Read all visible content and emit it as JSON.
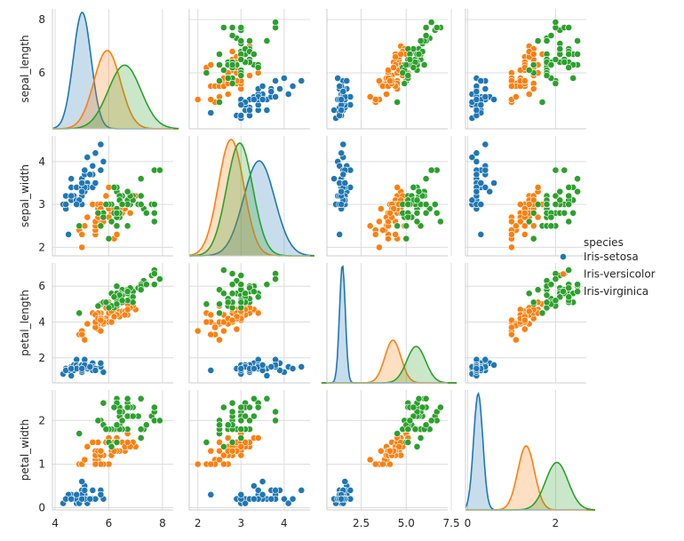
{
  "chart_data": {
    "type": "scatter",
    "title": "",
    "variables": [
      "sepal_length",
      "sepal_width",
      "petal_length",
      "petal_width"
    ],
    "ranges": {
      "sepal_length": [
        3.9,
        8.4
      ],
      "sepal_width": [
        1.8,
        4.6
      ],
      "petal_length": [
        0.6,
        7.3
      ],
      "petal_width": [
        -0.05,
        2.7
      ]
    },
    "ticks": {
      "sepal_length": [
        4,
        6,
        8
      ],
      "sepal_width": [
        2,
        3,
        4
      ],
      "petal_length": [
        2.5,
        5.0,
        7.5
      ],
      "petal_width": [
        0,
        2
      ]
    },
    "row_ticks": {
      "sepal_length": [
        6,
        8
      ],
      "sepal_width": [
        2,
        3,
        4
      ],
      "petal_length": [
        2,
        4,
        6
      ],
      "petal_width": [
        0,
        1,
        2
      ]
    },
    "diag_kde_limits": {
      "sepal_length": [
        3.9,
        8.6
      ],
      "sepal_width": [
        1.8,
        4.7
      ],
      "petal_length": [
        0.3,
        7.8
      ],
      "petal_width": [
        -0.05,
        2.9
      ]
    },
    "grid": true,
    "legend": {
      "title": "species",
      "position": "right",
      "entries": [
        "Iris-setosa",
        "Iris-versicolor",
        "Iris-virginica"
      ]
    },
    "colors": {
      "Iris-setosa": "#1f77b4",
      "Iris-versicolor": "#ff7f0e",
      "Iris-virginica": "#2ca02c"
    },
    "species_stats": {
      "Iris-setosa": {
        "mean": [
          5.01,
          3.42,
          1.46,
          0.24
        ],
        "std": [
          0.35,
          0.38,
          0.17,
          0.11
        ]
      },
      "Iris-versicolor": {
        "mean": [
          5.94,
          2.77,
          4.26,
          1.33
        ],
        "std": [
          0.52,
          0.31,
          0.47,
          0.2
        ]
      },
      "Iris-virginica": {
        "mean": [
          6.59,
          2.97,
          5.55,
          2.03
        ],
        "std": [
          0.64,
          0.32,
          0.55,
          0.27
        ]
      }
    },
    "points": {
      "Iris-setosa": [
        [
          5.1,
          3.5,
          1.4,
          0.2
        ],
        [
          4.9,
          3.0,
          1.4,
          0.2
        ],
        [
          4.7,
          3.2,
          1.3,
          0.2
        ],
        [
          4.6,
          3.1,
          1.5,
          0.2
        ],
        [
          5.0,
          3.6,
          1.4,
          0.2
        ],
        [
          5.4,
          3.9,
          1.7,
          0.4
        ],
        [
          4.6,
          3.4,
          1.4,
          0.3
        ],
        [
          5.0,
          3.4,
          1.5,
          0.2
        ],
        [
          4.4,
          2.9,
          1.4,
          0.2
        ],
        [
          4.9,
          3.1,
          1.5,
          0.1
        ],
        [
          5.4,
          3.7,
          1.5,
          0.2
        ],
        [
          4.8,
          3.4,
          1.6,
          0.2
        ],
        [
          4.8,
          3.0,
          1.4,
          0.1
        ],
        [
          4.3,
          3.0,
          1.1,
          0.1
        ],
        [
          5.8,
          4.0,
          1.2,
          0.2
        ],
        [
          5.7,
          4.4,
          1.5,
          0.4
        ],
        [
          5.4,
          3.9,
          1.3,
          0.4
        ],
        [
          5.1,
          3.5,
          1.4,
          0.3
        ],
        [
          5.7,
          3.8,
          1.7,
          0.3
        ],
        [
          5.1,
          3.8,
          1.5,
          0.3
        ],
        [
          5.4,
          3.4,
          1.7,
          0.2
        ],
        [
          5.1,
          3.7,
          1.5,
          0.4
        ],
        [
          4.6,
          3.6,
          1.0,
          0.2
        ],
        [
          5.1,
          3.3,
          1.7,
          0.5
        ],
        [
          4.8,
          3.4,
          1.9,
          0.2
        ],
        [
          5.0,
          3.0,
          1.6,
          0.2
        ],
        [
          5.0,
          3.4,
          1.6,
          0.4
        ],
        [
          5.2,
          3.5,
          1.5,
          0.2
        ],
        [
          5.2,
          3.4,
          1.4,
          0.2
        ],
        [
          4.7,
          3.2,
          1.6,
          0.2
        ],
        [
          4.8,
          3.1,
          1.6,
          0.2
        ],
        [
          5.4,
          3.4,
          1.5,
          0.4
        ],
        [
          5.2,
          4.1,
          1.5,
          0.1
        ],
        [
          5.5,
          4.2,
          1.4,
          0.2
        ],
        [
          4.9,
          3.1,
          1.5,
          0.1
        ],
        [
          5.0,
          3.2,
          1.2,
          0.2
        ],
        [
          5.5,
          3.5,
          1.3,
          0.2
        ],
        [
          4.9,
          3.1,
          1.5,
          0.1
        ],
        [
          4.4,
          3.0,
          1.3,
          0.2
        ],
        [
          5.1,
          3.4,
          1.5,
          0.2
        ],
        [
          5.0,
          3.5,
          1.3,
          0.3
        ],
        [
          4.5,
          2.3,
          1.3,
          0.3
        ],
        [
          4.4,
          3.2,
          1.3,
          0.2
        ],
        [
          5.0,
          3.5,
          1.6,
          0.6
        ],
        [
          5.1,
          3.8,
          1.9,
          0.4
        ],
        [
          4.8,
          3.0,
          1.4,
          0.3
        ],
        [
          5.1,
          3.8,
          1.6,
          0.2
        ],
        [
          4.6,
          3.2,
          1.4,
          0.2
        ],
        [
          5.3,
          3.7,
          1.5,
          0.2
        ],
        [
          5.0,
          3.3,
          1.4,
          0.2
        ]
      ],
      "Iris-versicolor": [
        [
          7.0,
          3.2,
          4.7,
          1.4
        ],
        [
          6.4,
          3.2,
          4.5,
          1.5
        ],
        [
          6.9,
          3.1,
          4.9,
          1.5
        ],
        [
          5.5,
          2.3,
          4.0,
          1.3
        ],
        [
          6.5,
          2.8,
          4.6,
          1.5
        ],
        [
          5.7,
          2.8,
          4.5,
          1.3
        ],
        [
          6.3,
          3.3,
          4.7,
          1.6
        ],
        [
          4.9,
          2.4,
          3.3,
          1.0
        ],
        [
          6.6,
          2.9,
          4.6,
          1.3
        ],
        [
          5.2,
          2.7,
          3.9,
          1.4
        ],
        [
          5.0,
          2.0,
          3.5,
          1.0
        ],
        [
          5.9,
          3.0,
          4.2,
          1.5
        ],
        [
          6.0,
          2.2,
          4.0,
          1.0
        ],
        [
          6.1,
          2.9,
          4.7,
          1.4
        ],
        [
          5.6,
          2.9,
          3.6,
          1.3
        ],
        [
          6.7,
          3.1,
          4.4,
          1.4
        ],
        [
          5.6,
          3.0,
          4.5,
          1.5
        ],
        [
          5.8,
          2.7,
          4.1,
          1.0
        ],
        [
          6.2,
          2.2,
          4.5,
          1.5
        ],
        [
          5.6,
          2.5,
          3.9,
          1.1
        ],
        [
          5.9,
          3.2,
          4.8,
          1.8
        ],
        [
          6.1,
          2.8,
          4.0,
          1.3
        ],
        [
          6.3,
          2.5,
          4.9,
          1.5
        ],
        [
          6.1,
          2.8,
          4.7,
          1.2
        ],
        [
          6.4,
          2.9,
          4.3,
          1.3
        ],
        [
          6.6,
          3.0,
          4.4,
          1.4
        ],
        [
          6.8,
          2.8,
          4.8,
          1.4
        ],
        [
          6.7,
          3.0,
          5.0,
          1.7
        ],
        [
          6.0,
          2.9,
          4.5,
          1.5
        ],
        [
          5.7,
          2.6,
          3.5,
          1.0
        ],
        [
          5.5,
          2.4,
          3.8,
          1.1
        ],
        [
          5.5,
          2.4,
          3.7,
          1.0
        ],
        [
          5.8,
          2.7,
          3.9,
          1.2
        ],
        [
          6.0,
          2.7,
          5.1,
          1.6
        ],
        [
          5.4,
          3.0,
          4.5,
          1.5
        ],
        [
          6.0,
          3.4,
          4.5,
          1.6
        ],
        [
          6.7,
          3.1,
          4.7,
          1.5
        ],
        [
          6.3,
          2.3,
          4.4,
          1.3
        ],
        [
          5.6,
          3.0,
          4.1,
          1.3
        ],
        [
          5.5,
          2.5,
          4.0,
          1.3
        ],
        [
          5.5,
          2.6,
          4.4,
          1.2
        ],
        [
          6.1,
          3.0,
          4.6,
          1.4
        ],
        [
          5.8,
          2.6,
          4.0,
          1.2
        ],
        [
          5.0,
          2.3,
          3.3,
          1.0
        ],
        [
          5.6,
          2.7,
          4.2,
          1.3
        ],
        [
          5.7,
          3.0,
          4.2,
          1.2
        ],
        [
          5.7,
          2.9,
          4.2,
          1.3
        ],
        [
          6.2,
          2.9,
          4.3,
          1.3
        ],
        [
          5.1,
          2.5,
          3.0,
          1.1
        ],
        [
          5.7,
          2.8,
          4.1,
          1.3
        ]
      ],
      "Iris-virginica": [
        [
          6.3,
          3.3,
          6.0,
          2.5
        ],
        [
          5.8,
          2.7,
          5.1,
          1.9
        ],
        [
          7.1,
          3.0,
          5.9,
          2.1
        ],
        [
          6.3,
          2.9,
          5.6,
          1.8
        ],
        [
          6.5,
          3.0,
          5.8,
          2.2
        ],
        [
          7.6,
          3.0,
          6.6,
          2.1
        ],
        [
          4.9,
          2.5,
          4.5,
          1.7
        ],
        [
          7.3,
          2.9,
          6.3,
          1.8
        ],
        [
          6.7,
          2.5,
          5.8,
          1.8
        ],
        [
          7.2,
          3.6,
          6.1,
          2.5
        ],
        [
          6.5,
          3.2,
          5.1,
          2.0
        ],
        [
          6.4,
          2.7,
          5.3,
          1.9
        ],
        [
          6.8,
          3.0,
          5.5,
          2.1
        ],
        [
          5.7,
          2.5,
          5.0,
          2.0
        ],
        [
          5.8,
          2.8,
          5.1,
          2.4
        ],
        [
          6.4,
          3.2,
          5.3,
          2.3
        ],
        [
          6.5,
          3.0,
          5.5,
          1.8
        ],
        [
          7.7,
          3.8,
          6.7,
          2.2
        ],
        [
          7.7,
          2.6,
          6.9,
          2.3
        ],
        [
          6.0,
          2.2,
          5.0,
          1.5
        ],
        [
          6.9,
          3.2,
          5.7,
          2.3
        ],
        [
          5.6,
          2.8,
          4.9,
          2.0
        ],
        [
          7.7,
          2.8,
          6.7,
          2.0
        ],
        [
          6.3,
          2.7,
          4.9,
          1.8
        ],
        [
          6.7,
          3.3,
          5.7,
          2.1
        ],
        [
          7.2,
          3.2,
          6.0,
          1.8
        ],
        [
          6.2,
          2.8,
          4.8,
          1.8
        ],
        [
          6.1,
          3.0,
          4.9,
          1.8
        ],
        [
          6.4,
          2.8,
          5.6,
          2.1
        ],
        [
          7.2,
          3.0,
          5.8,
          1.6
        ],
        [
          7.4,
          2.8,
          6.1,
          1.9
        ],
        [
          7.9,
          3.8,
          6.4,
          2.0
        ],
        [
          6.4,
          2.8,
          5.6,
          2.2
        ],
        [
          6.3,
          2.8,
          5.1,
          1.5
        ],
        [
          6.1,
          2.6,
          5.6,
          1.4
        ],
        [
          7.7,
          3.0,
          6.1,
          2.3
        ],
        [
          6.3,
          3.4,
          5.6,
          2.4
        ],
        [
          6.4,
          3.1,
          5.5,
          1.8
        ],
        [
          6.0,
          3.0,
          4.8,
          1.8
        ],
        [
          6.9,
          3.1,
          5.4,
          2.1
        ],
        [
          6.7,
          3.1,
          5.6,
          2.4
        ],
        [
          6.9,
          3.1,
          5.1,
          2.3
        ],
        [
          5.8,
          2.7,
          5.1,
          1.9
        ],
        [
          6.8,
          3.2,
          5.9,
          2.3
        ],
        [
          6.7,
          3.3,
          5.7,
          2.5
        ],
        [
          6.7,
          3.0,
          5.2,
          2.3
        ],
        [
          6.3,
          2.5,
          5.0,
          1.9
        ],
        [
          6.5,
          3.0,
          5.2,
          2.0
        ],
        [
          6.2,
          3.4,
          5.4,
          2.3
        ],
        [
          5.9,
          3.0,
          5.1,
          1.8
        ]
      ]
    }
  }
}
